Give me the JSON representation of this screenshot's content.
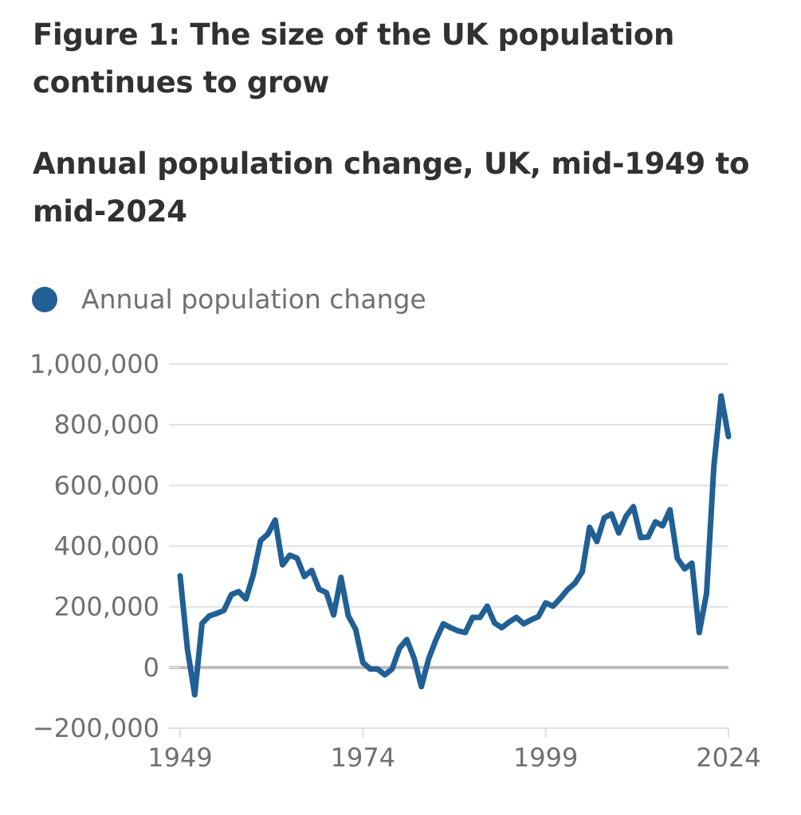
{
  "title": "Figure 1: The size of the UK population continues to grow",
  "subtitle": "Annual population change, UK, mid-1949 to mid-2024",
  "legend": [
    {
      "label": "Annual population change",
      "color": "#206095",
      "icon": "circle-marker-icon"
    }
  ],
  "chart_data": {
    "type": "line",
    "title": "Annual population change, UK, mid-1949 to mid-2024",
    "xlabel": "",
    "ylabel": "",
    "x_range": [
      1949,
      2024
    ],
    "ylim": [
      -200000,
      1000000
    ],
    "grid": true,
    "legend_position": "top-left",
    "y_ticks": [
      -200000,
      0,
      200000,
      400000,
      600000,
      800000,
      1000000
    ],
    "y_tick_labels": [
      "−200,000",
      "0",
      "200,000",
      "400,000",
      "600,000",
      "800,000",
      "1,000,000"
    ],
    "x_ticks": [
      1949,
      1974,
      1999,
      2024
    ],
    "x_tick_labels": [
      "1949",
      "1974",
      "1999",
      "2024"
    ],
    "series": [
      {
        "name": "Annual population change",
        "color": "#206095",
        "x": [
          1949,
          1950,
          1951,
          1952,
          1953,
          1954,
          1955,
          1956,
          1957,
          1958,
          1959,
          1960,
          1961,
          1962,
          1963,
          1964,
          1965,
          1966,
          1967,
          1968,
          1969,
          1970,
          1971,
          1972,
          1973,
          1974,
          1975,
          1976,
          1977,
          1978,
          1979,
          1980,
          1981,
          1982,
          1983,
          1984,
          1985,
          1986,
          1987,
          1988,
          1989,
          1990,
          1991,
          1992,
          1993,
          1994,
          1995,
          1996,
          1997,
          1998,
          1999,
          2000,
          2001,
          2002,
          2003,
          2004,
          2005,
          2006,
          2007,
          2008,
          2009,
          2010,
          2011,
          2012,
          2013,
          2014,
          2015,
          2016,
          2017,
          2018,
          2019,
          2020,
          2021,
          2022,
          2023,
          2024
        ],
        "values": [
          302000,
          60000,
          -90000,
          145000,
          170000,
          178000,
          188000,
          240000,
          250000,
          226000,
          305000,
          418000,
          440000,
          486000,
          338000,
          370000,
          360000,
          300000,
          320000,
          258000,
          247000,
          173000,
          297000,
          170000,
          126000,
          16000,
          -5000,
          -5000,
          -24000,
          -5000,
          63000,
          92000,
          31000,
          -63000,
          29000,
          92000,
          144000,
          131000,
          121000,
          115000,
          165000,
          165000,
          202000,
          147000,
          131000,
          150000,
          165000,
          144000,
          157000,
          168000,
          213000,
          202000,
          228000,
          257000,
          278000,
          315000,
          462000,
          415000,
          493000,
          506000,
          443000,
          499000,
          530000,
          428000,
          430000,
          480000,
          467000,
          520000,
          360000,
          325000,
          344000,
          115000,
          244000,
          664000,
          895000,
          761000
        ]
      }
    ]
  }
}
